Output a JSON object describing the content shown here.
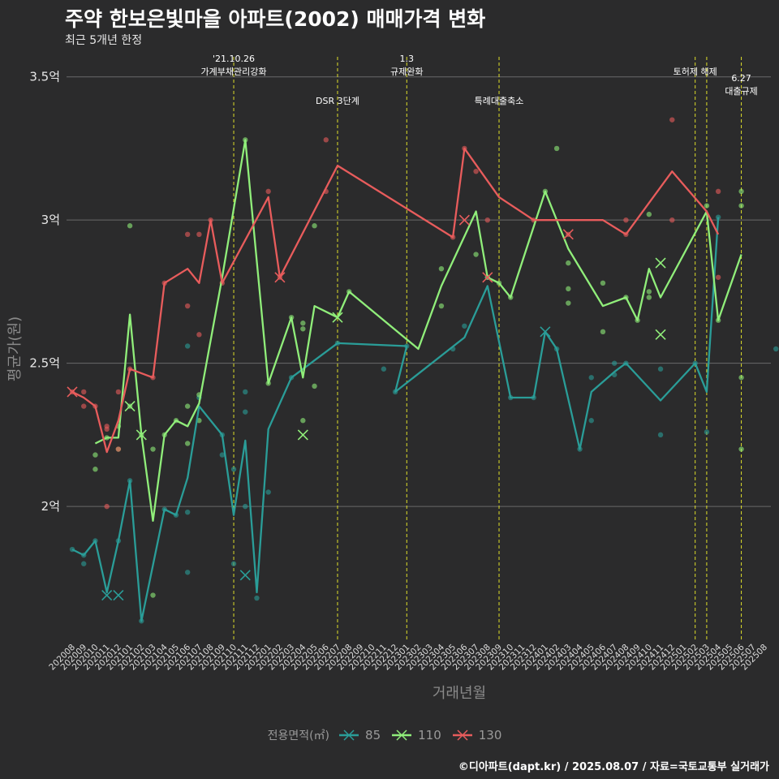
{
  "header": {
    "title": "주약 한보은빛마을 아파트(2002) 매매가격 변화",
    "subtitle": "최근 5개년 한정"
  },
  "caption": "©디아파트(dapt.kr) / 2025.08.07 / 자료=국토교통부 실거래가",
  "legend": {
    "title": "전용면적(㎡)",
    "items": [
      {
        "label": "85",
        "color": "#2a9d98"
      },
      {
        "label": "110",
        "color": "#90ee7a"
      },
      {
        "label": "130",
        "color": "#e85c5c"
      }
    ]
  },
  "chart_data": {
    "type": "line",
    "xlabel": "거래년월",
    "ylabel": "평균가(원)",
    "ylim": [
      1.53,
      3.57
    ],
    "y_ticks": [
      {
        "value": 2,
        "label": "2억"
      },
      {
        "value": 2.5,
        "label": "2.5억"
      },
      {
        "value": 3,
        "label": "3억"
      },
      {
        "value": 3.5,
        "label": "3.5억"
      }
    ],
    "categories": [
      "202008",
      "202009",
      "202010",
      "202011",
      "202012",
      "202101",
      "202102",
      "202103",
      "202104",
      "202105",
      "202106",
      "202107",
      "202108",
      "202109",
      "202110",
      "202111",
      "202112",
      "202201",
      "202202",
      "202203",
      "202204",
      "202205",
      "202206",
      "202207",
      "202208",
      "202209",
      "202210",
      "202211",
      "202212",
      "202301",
      "202302",
      "202303",
      "202304",
      "202305",
      "202306",
      "202307",
      "202308",
      "202309",
      "202310",
      "202311",
      "202312",
      "202401",
      "202402",
      "202403",
      "202404",
      "202405",
      "202406",
      "202407",
      "202408",
      "202409",
      "202410",
      "202411",
      "202412",
      "202501",
      "202502",
      "202503",
      "202504",
      "202505",
      "202506",
      "202507",
      "202508"
    ],
    "grid": true,
    "annotations": [
      {
        "x": 14,
        "lines": [
          "'21.10.26",
          "가계부채관리강화"
        ],
        "level": 0
      },
      {
        "x": 23,
        "lines": [
          "DSR 3단계"
        ],
        "level": 1
      },
      {
        "x": 29,
        "lines": [
          "1.3",
          "규제완화"
        ],
        "level": 0
      },
      {
        "x": 37,
        "lines": [
          "특례대출축소"
        ],
        "level": 1
      },
      {
        "x": 54,
        "lines": [
          "토허제 해제"
        ],
        "level": 0
      },
      {
        "x": 55,
        "lines": [],
        "level": 0
      },
      {
        "x": 58,
        "lines": [
          "6.27",
          "대출규제"
        ],
        "level": 2
      }
    ],
    "series": [
      {
        "name": "85",
        "color": "#2a9d98",
        "line": [
          [
            0,
            1.85
          ],
          [
            1,
            1.83
          ],
          [
            2,
            1.88
          ],
          [
            3,
            1.7
          ],
          [
            4,
            1.88
          ],
          [
            5,
            2.09
          ],
          [
            6,
            1.6
          ],
          [
            8,
            1.99
          ],
          [
            9,
            1.97
          ],
          [
            10,
            2.1
          ],
          [
            11,
            2.35
          ],
          [
            13,
            2.25
          ],
          [
            14,
            1.97
          ],
          [
            15,
            2.23
          ],
          [
            16,
            1.7
          ],
          [
            17,
            2.27
          ],
          [
            19,
            2.45
          ],
          [
            21,
            2.51
          ],
          [
            23,
            2.57
          ],
          [
            29,
            2.56
          ],
          [
            28,
            2.4
          ],
          [
            34,
            2.59
          ],
          [
            36,
            2.77
          ],
          [
            38,
            2.38
          ],
          [
            40,
            2.38
          ],
          [
            41,
            2.61
          ],
          [
            42,
            2.55
          ],
          [
            44,
            2.2
          ],
          [
            45,
            2.4
          ],
          [
            47,
            2.47
          ],
          [
            48,
            2.5
          ],
          [
            51,
            2.37
          ],
          [
            54,
            2.5
          ],
          [
            55,
            2.4
          ],
          [
            56,
            3.01
          ]
        ],
        "points": [
          [
            0,
            1.85
          ],
          [
            1,
            1.8
          ],
          [
            1,
            1.83
          ],
          [
            2,
            1.88
          ],
          [
            4,
            1.88
          ],
          [
            5,
            2.09
          ],
          [
            6,
            1.6
          ],
          [
            8,
            1.99
          ],
          [
            9,
            1.97
          ],
          [
            10,
            1.98
          ],
          [
            10,
            1.77
          ],
          [
            10,
            2.56
          ],
          [
            11,
            2.38
          ],
          [
            13,
            2.25
          ],
          [
            13,
            2.18
          ],
          [
            14,
            2.13
          ],
          [
            14,
            1.8
          ],
          [
            15,
            2.0
          ],
          [
            15,
            2.33
          ],
          [
            15,
            2.4
          ],
          [
            16,
            1.68
          ],
          [
            17,
            2.05
          ],
          [
            19,
            2.45
          ],
          [
            23,
            2.57
          ],
          [
            27,
            2.48
          ],
          [
            28,
            2.4
          ],
          [
            29,
            2.56
          ],
          [
            33,
            2.55
          ],
          [
            34,
            2.63
          ],
          [
            36,
            2.8
          ],
          [
            38,
            2.38
          ],
          [
            40,
            2.38
          ],
          [
            42,
            2.55
          ],
          [
            44,
            2.2
          ],
          [
            45,
            2.45
          ],
          [
            45,
            2.3
          ],
          [
            47,
            2.46
          ],
          [
            47,
            2.5
          ],
          [
            48,
            2.5
          ],
          [
            51,
            2.48
          ],
          [
            51,
            2.25
          ],
          [
            54,
            2.5
          ],
          [
            55,
            2.26
          ],
          [
            56,
            3.01
          ],
          [
            61,
            2.55
          ]
        ],
        "crosses": [
          [
            3,
            1.69
          ],
          [
            4,
            1.69
          ],
          [
            15,
            1.76
          ],
          [
            41,
            2.61
          ]
        ]
      },
      {
        "name": "110",
        "color": "#90ee7a",
        "line": [
          [
            2,
            2.22
          ],
          [
            3,
            2.24
          ],
          [
            4,
            2.24
          ],
          [
            5,
            2.67
          ],
          [
            6,
            2.25
          ],
          [
            7,
            1.95
          ],
          [
            8,
            2.25
          ],
          [
            9,
            2.3
          ],
          [
            10,
            2.28
          ],
          [
            11,
            2.36
          ],
          [
            13,
            2.8
          ],
          [
            15,
            3.28
          ],
          [
            17,
            2.43
          ],
          [
            19,
            2.66
          ],
          [
            20,
            2.45
          ],
          [
            21,
            2.7
          ],
          [
            23,
            2.66
          ],
          [
            24,
            2.75
          ],
          [
            30,
            2.55
          ],
          [
            32,
            2.77
          ],
          [
            35,
            3.03
          ],
          [
            36,
            2.8
          ],
          [
            37,
            2.78
          ],
          [
            38,
            2.73
          ],
          [
            41,
            3.1
          ],
          [
            43,
            2.9
          ],
          [
            46,
            2.7
          ],
          [
            48,
            2.73
          ],
          [
            49,
            2.65
          ],
          [
            50,
            2.83
          ],
          [
            51,
            2.73
          ],
          [
            55,
            3.03
          ],
          [
            56,
            2.65
          ],
          [
            58,
            2.88
          ]
        ],
        "points": [
          [
            2,
            2.18
          ],
          [
            2,
            2.13
          ],
          [
            3,
            2.24
          ],
          [
            4,
            2.28
          ],
          [
            4,
            2.2
          ],
          [
            5,
            2.98
          ],
          [
            5,
            2.35
          ],
          [
            6,
            2.25
          ],
          [
            7,
            2.2
          ],
          [
            7,
            1.69
          ],
          [
            8,
            2.25
          ],
          [
            9,
            2.3
          ],
          [
            10,
            2.35
          ],
          [
            10,
            2.22
          ],
          [
            11,
            2.3
          ],
          [
            11,
            2.39
          ],
          [
            15,
            3.28
          ],
          [
            17,
            2.43
          ],
          [
            19,
            2.66
          ],
          [
            20,
            2.64
          ],
          [
            20,
            2.62
          ],
          [
            20,
            2.3
          ],
          [
            21,
            2.98
          ],
          [
            21,
            2.42
          ],
          [
            24,
            2.75
          ],
          [
            32,
            2.83
          ],
          [
            32,
            2.7
          ],
          [
            35,
            2.88
          ],
          [
            36,
            2.8
          ],
          [
            37,
            2.78
          ],
          [
            38,
            2.73
          ],
          [
            41,
            3.1
          ],
          [
            42,
            3.25
          ],
          [
            43,
            2.76
          ],
          [
            43,
            2.71
          ],
          [
            43,
            2.85
          ],
          [
            46,
            2.78
          ],
          [
            46,
            2.61
          ],
          [
            48,
            2.73
          ],
          [
            49,
            2.65
          ],
          [
            50,
            2.75
          ],
          [
            50,
            2.73
          ],
          [
            50,
            3.02
          ],
          [
            55,
            3.05
          ],
          [
            56,
            2.65
          ],
          [
            58,
            3.1
          ],
          [
            58,
            3.05
          ],
          [
            58,
            2.45
          ],
          [
            58,
            2.2
          ]
        ],
        "crosses": [
          [
            5,
            2.35
          ],
          [
            6,
            2.25
          ],
          [
            20,
            2.25
          ],
          [
            23,
            2.66
          ],
          [
            51,
            2.85
          ],
          [
            51,
            2.6
          ]
        ]
      },
      {
        "name": "130",
        "color": "#e85c5c",
        "line": [
          [
            0,
            2.4
          ],
          [
            1,
            2.38
          ],
          [
            2,
            2.35
          ],
          [
            3,
            2.19
          ],
          [
            4,
            2.3
          ],
          [
            5,
            2.48
          ],
          [
            7,
            2.45
          ],
          [
            8,
            2.78
          ],
          [
            10,
            2.83
          ],
          [
            11,
            2.78
          ],
          [
            12,
            3.0
          ],
          [
            13,
            2.78
          ],
          [
            17,
            3.08
          ],
          [
            18,
            2.8
          ],
          [
            23,
            3.19
          ],
          [
            33,
            2.94
          ],
          [
            34,
            3.25
          ],
          [
            37,
            3.08
          ],
          [
            40,
            3.0
          ],
          [
            43,
            3.0
          ],
          [
            46,
            3.0
          ],
          [
            48,
            2.95
          ],
          [
            52,
            3.17
          ],
          [
            55,
            3.03
          ],
          [
            56,
            2.95
          ]
        ],
        "points": [
          [
            0,
            2.4
          ],
          [
            1,
            2.4
          ],
          [
            1,
            2.35
          ],
          [
            2,
            2.35
          ],
          [
            3,
            2.28
          ],
          [
            3,
            2.27
          ],
          [
            3,
            2.0
          ],
          [
            4,
            2.4
          ],
          [
            4,
            2.2
          ],
          [
            5,
            2.48
          ],
          [
            7,
            2.45
          ],
          [
            8,
            2.78
          ],
          [
            10,
            2.95
          ],
          [
            10,
            2.7
          ],
          [
            11,
            2.95
          ],
          [
            11,
            2.6
          ],
          [
            12,
            3.0
          ],
          [
            13,
            2.78
          ],
          [
            17,
            3.1
          ],
          [
            18,
            2.8
          ],
          [
            22,
            3.28
          ],
          [
            22,
            3.1
          ],
          [
            33,
            2.94
          ],
          [
            34,
            3.25
          ],
          [
            35,
            3.17
          ],
          [
            36,
            3.0
          ],
          [
            40,
            3.0
          ],
          [
            43,
            2.95
          ],
          [
            48,
            3.0
          ],
          [
            48,
            2.95
          ],
          [
            52,
            3.35
          ],
          [
            52,
            3.0
          ],
          [
            56,
            3.1
          ],
          [
            56,
            2.8
          ]
        ],
        "crosses": [
          [
            0,
            2.4
          ],
          [
            18,
            2.8
          ],
          [
            34,
            3.0
          ],
          [
            36,
            2.8
          ],
          [
            43,
            2.95
          ]
        ]
      }
    ]
  }
}
